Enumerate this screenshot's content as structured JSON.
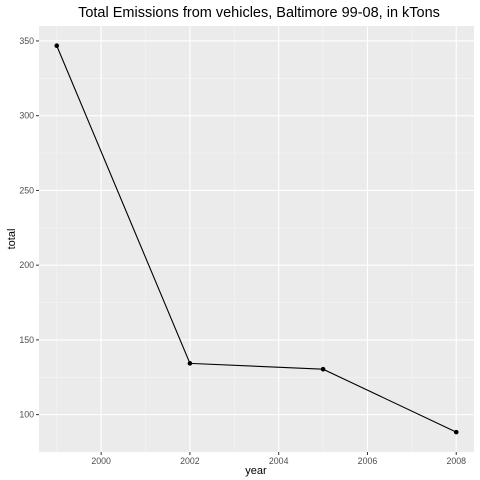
{
  "chart_data": {
    "type": "line",
    "title": "Total Emissions from vehicles, Baltimore 99-08, in kTons",
    "xlabel": "year",
    "ylabel": "total",
    "x": [
      1999,
      2002,
      2005,
      2008
    ],
    "series": [
      {
        "values": [
          346.8,
          134.3,
          130.4,
          88.3
        ]
      }
    ],
    "xlim": [
      1998.6,
      2008.4
    ],
    "ylim": [
      75,
      360
    ],
    "xticks": [
      2000,
      2002,
      2004,
      2006,
      2008
    ],
    "xtick_labels": [
      "2000",
      "2002",
      "2004",
      "2006",
      "2008"
    ],
    "yticks": [
      100,
      150,
      200,
      250,
      300,
      350
    ],
    "ytick_labels": [
      "100",
      "150",
      "200",
      "250",
      "300",
      "350"
    ],
    "grid": true,
    "legend": "none",
    "colors": {
      "panel": "#ebebeb",
      "grid_major": "#ffffff",
      "grid_minor": "#f5f5f5",
      "line": "#000000",
      "tick_label": "#4d4d4d"
    }
  }
}
